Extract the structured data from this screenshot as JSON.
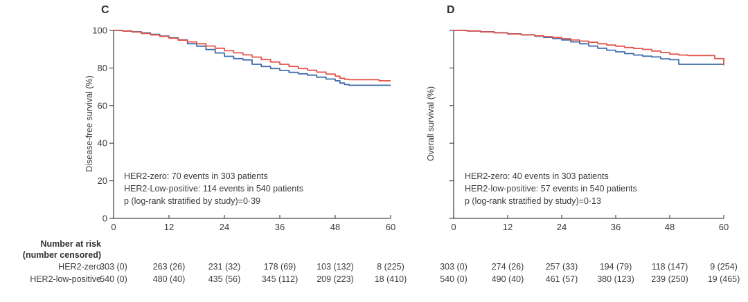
{
  "panels": [
    {
      "label": "C",
      "ylabel": "Disease-free survival (%)",
      "annotation": [
        "HER2-zero: 70 events in 303 patients",
        "HER2-Low-positive: 114 events in 540 patients",
        "p (log-rank stratified by study)=0·39"
      ]
    },
    {
      "label": "D",
      "ylabel": "Overall survival (%)",
      "annotation": [
        "HER2-zero: 40 events in 303 patients",
        "HER2-low-positive: 57 events in 540 patients",
        "p (log-rank stratified by study)=0·13"
      ]
    }
  ],
  "risk_table": {
    "header_line1": "Number at risk",
    "header_line2": "(number censored)",
    "time_points": [
      0,
      12,
      24,
      36,
      48,
      60
    ],
    "rows": [
      {
        "label": "HER2-zero",
        "values_c": [
          "303 (0)",
          "263 (26)",
          "231 (32)",
          "178 (69)",
          "103 (132)",
          "8 (225)"
        ],
        "values_d": [
          "303 (0)",
          "274 (26)",
          "257 (33)",
          "194 (79)",
          "118 (147)",
          "9 (254)"
        ]
      },
      {
        "label": "HER2-low-positive",
        "values_c": [
          "540 (0)",
          "480 (40)",
          "435 (56)",
          "345 (112)",
          "209 (223)",
          "18 (410)"
        ],
        "values_d": [
          "540 (0)",
          "490 (40)",
          "461 (57)",
          "380 (123)",
          "239 (250)",
          "19 (465)"
        ]
      }
    ]
  },
  "colors": {
    "her2_low_positive": "#e2544b",
    "her2_zero": "#3e6cab",
    "axis": "#4a4a4a",
    "text": "#3c3c3c"
  },
  "chart_data": [
    {
      "type": "line",
      "subtype": "kaplan-meier-step",
      "panel": "C",
      "title": "Disease-free survival",
      "xlabel": "",
      "ylabel": "Disease-free survival (%)",
      "xlim": [
        0,
        60
      ],
      "ylim": [
        0,
        100
      ],
      "xticks": [
        0,
        12,
        24,
        36,
        48,
        60
      ],
      "yticks": [
        100,
        80,
        60,
        40,
        20,
        0
      ],
      "ytick_labels_visible": true,
      "grid": false,
      "legend_position": "none",
      "annotation": [
        "HER2-zero: 70 events in 303 patients",
        "HER2-Low-positive: 114 events in 540 patients",
        "p (log-rank stratified by study)=0·39"
      ],
      "series": [
        {
          "name": "HER2-zero",
          "color": "#3e6cab",
          "step": true,
          "points": [
            [
              0,
              100
            ],
            [
              2,
              99.7
            ],
            [
              4,
              99.3
            ],
            [
              6,
              98.7
            ],
            [
              8,
              97.9
            ],
            [
              10,
              97.0
            ],
            [
              12,
              96.1
            ],
            [
              14,
              95.0
            ],
            [
              16,
              92.9
            ],
            [
              18,
              91.6
            ],
            [
              20,
              89.8
            ],
            [
              22,
              88.0
            ],
            [
              24,
              86.2
            ],
            [
              26,
              85.0
            ],
            [
              28,
              84.3
            ],
            [
              30,
              82.0
            ],
            [
              32,
              80.8
            ],
            [
              34,
              79.7
            ],
            [
              36,
              78.7
            ],
            [
              38,
              77.7
            ],
            [
              40,
              76.9
            ],
            [
              42,
              76.2
            ],
            [
              44,
              75.1
            ],
            [
              46,
              74.1
            ],
            [
              48,
              73.2
            ],
            [
              49,
              72.0
            ],
            [
              50,
              71.2
            ],
            [
              51,
              70.8
            ],
            [
              60,
              70.8
            ]
          ]
        },
        {
          "name": "HER2-low-positive",
          "color": "#e2544b",
          "step": true,
          "points": [
            [
              0,
              100
            ],
            [
              2,
              99.6
            ],
            [
              4,
              99.1
            ],
            [
              6,
              98.4
            ],
            [
              8,
              97.6
            ],
            [
              10,
              96.8
            ],
            [
              12,
              95.8
            ],
            [
              14,
              94.8
            ],
            [
              16,
              93.9
            ],
            [
              18,
              92.9
            ],
            [
              20,
              91.7
            ],
            [
              22,
              90.5
            ],
            [
              24,
              89.2
            ],
            [
              26,
              88.1
            ],
            [
              28,
              87.0
            ],
            [
              30,
              85.8
            ],
            [
              32,
              84.5
            ],
            [
              34,
              83.2
            ],
            [
              36,
              82.0
            ],
            [
              38,
              80.8
            ],
            [
              40,
              79.7
            ],
            [
              42,
              78.8
            ],
            [
              44,
              77.8
            ],
            [
              46,
              76.8
            ],
            [
              48,
              75.7
            ],
            [
              49,
              74.6
            ],
            [
              50,
              74.0
            ],
            [
              51,
              73.8
            ],
            [
              57,
              73.8
            ],
            [
              57.5,
              73.2
            ],
            [
              60,
              73.2
            ]
          ]
        }
      ]
    },
    {
      "type": "line",
      "subtype": "kaplan-meier-step",
      "panel": "D",
      "title": "Overall survival",
      "xlabel": "",
      "ylabel": "Overall survival (%)",
      "xlim": [
        0,
        60
      ],
      "ylim": [
        0,
        100
      ],
      "xticks": [
        0,
        12,
        24,
        36,
        48,
        60
      ],
      "yticks": [
        100,
        80,
        60,
        40,
        20,
        0
      ],
      "ytick_labels_visible": false,
      "grid": false,
      "legend_position": "none",
      "annotation": [
        "HER2-zero: 40 events in 303 patients",
        "HER2-low-positive: 57 events in 540 patients",
        "p (log-rank stratified by study)=0·13"
      ],
      "series": [
        {
          "name": "HER2-zero",
          "color": "#3e6cab",
          "step": true,
          "points": [
            [
              0,
              100
            ],
            [
              3,
              99.7
            ],
            [
              6,
              99.3
            ],
            [
              9,
              98.8
            ],
            [
              12,
              98.2
            ],
            [
              15,
              97.7
            ],
            [
              18,
              96.9
            ],
            [
              20,
              96.3
            ],
            [
              22,
              95.7
            ],
            [
              24,
              94.9
            ],
            [
              26,
              93.9
            ],
            [
              28,
              92.9
            ],
            [
              30,
              91.7
            ],
            [
              32,
              90.5
            ],
            [
              34,
              89.5
            ],
            [
              36,
              88.6
            ],
            [
              38,
              87.7
            ],
            [
              40,
              86.9
            ],
            [
              42,
              86.3
            ],
            [
              44,
              85.9
            ],
            [
              46,
              84.9
            ],
            [
              48,
              84.4
            ],
            [
              49.5,
              84.4
            ],
            [
              50,
              82.0
            ],
            [
              60,
              82.0
            ]
          ]
        },
        {
          "name": "HER2-low-positive",
          "color": "#e2544b",
          "step": true,
          "censor_tick_at_end": true,
          "points": [
            [
              0,
              100
            ],
            [
              3,
              99.7
            ],
            [
              6,
              99.2
            ],
            [
              9,
              98.7
            ],
            [
              12,
              98.1
            ],
            [
              15,
              97.6
            ],
            [
              18,
              97.1
            ],
            [
              20,
              96.7
            ],
            [
              22,
              96.2
            ],
            [
              24,
              95.6
            ],
            [
              26,
              94.9
            ],
            [
              28,
              94.3
            ],
            [
              30,
              93.7
            ],
            [
              32,
              92.9
            ],
            [
              34,
              92.2
            ],
            [
              36,
              91.6
            ],
            [
              38,
              90.9
            ],
            [
              40,
              90.4
            ],
            [
              42,
              89.9
            ],
            [
              44,
              89.0
            ],
            [
              46,
              88.2
            ],
            [
              48,
              87.4
            ],
            [
              50,
              86.9
            ],
            [
              52,
              86.6
            ],
            [
              57.5,
              86.6
            ],
            [
              58,
              85.0
            ],
            [
              59.8,
              85.0
            ],
            [
              60,
              83.2
            ]
          ]
        }
      ]
    }
  ]
}
